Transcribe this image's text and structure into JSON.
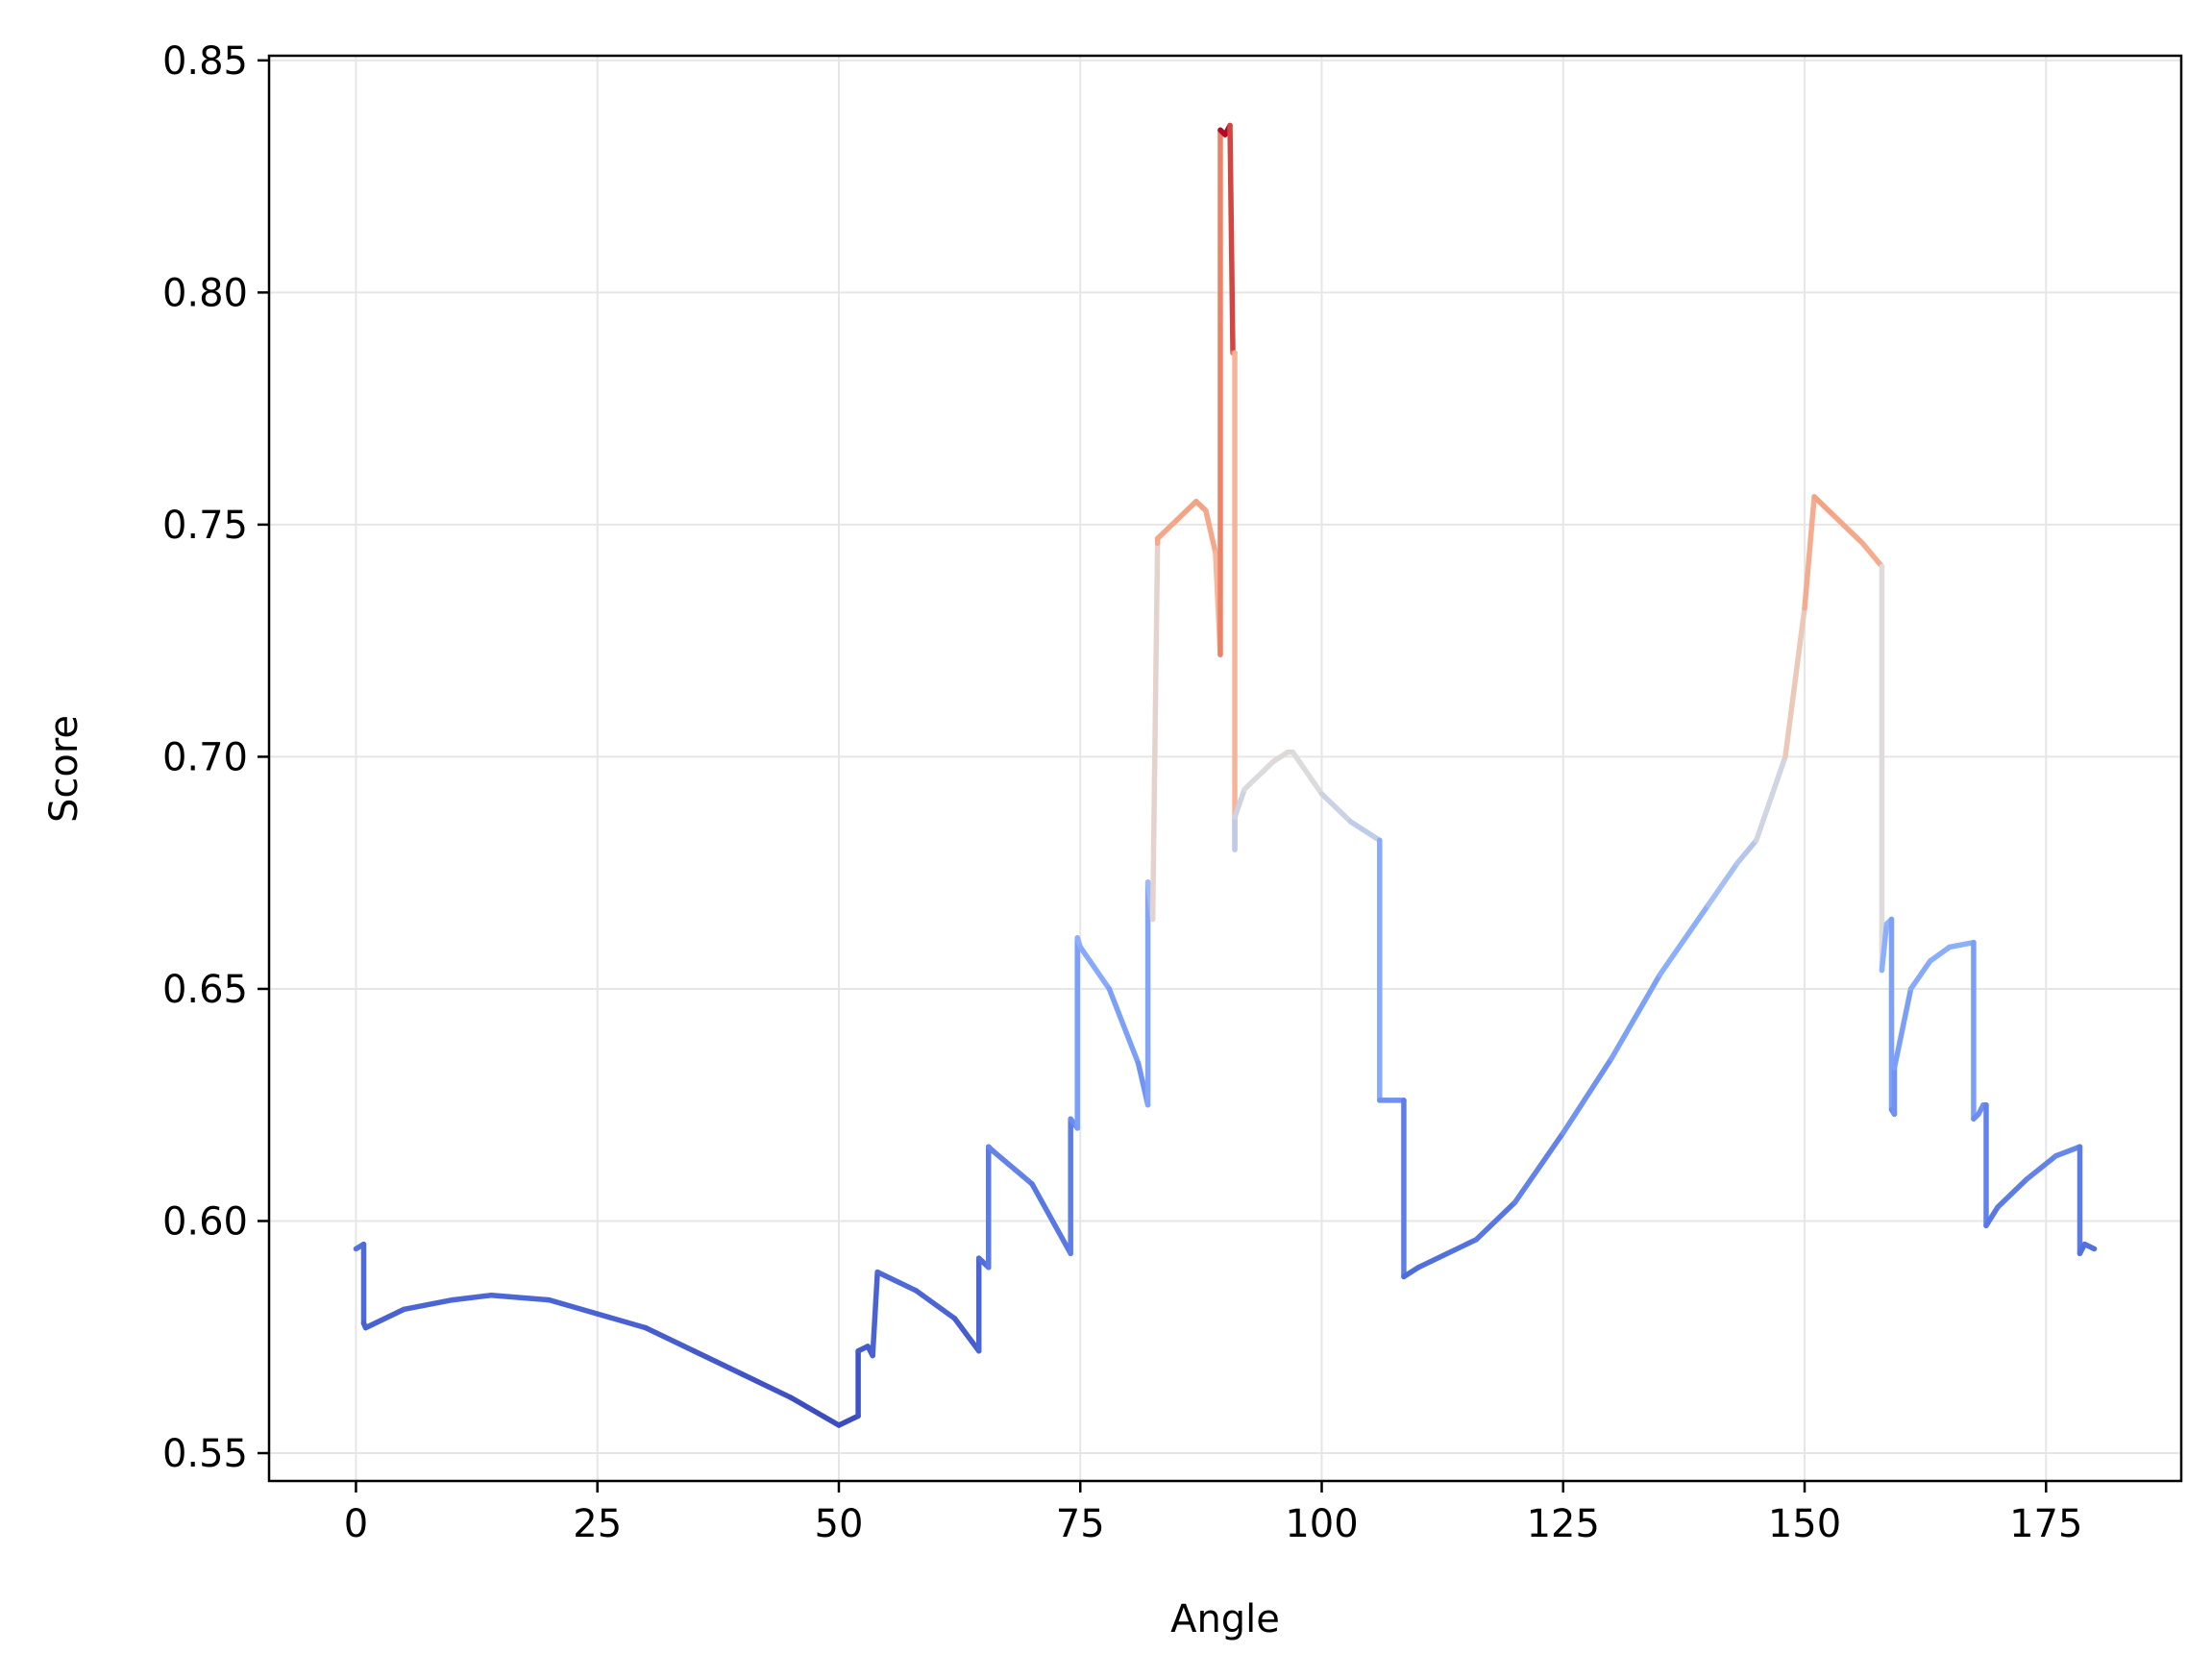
{
  "chart_data": {
    "type": "line",
    "title": "",
    "xlabel": "Angle",
    "ylabel": "Score",
    "xlim": [
      -9,
      189
    ],
    "ylim": [
      0.544,
      0.851
    ],
    "xticks": [
      0,
      25,
      50,
      75,
      100,
      125,
      150,
      175
    ],
    "yticks": [
      0.55,
      0.6,
      0.65,
      0.7,
      0.75,
      0.8,
      0.85
    ],
    "xtick_labels": [
      "0",
      "25",
      "50",
      "75",
      "100",
      "125",
      "150",
      "175"
    ],
    "ytick_labels": [
      "0.55",
      "0.60",
      "0.65",
      "0.70",
      "0.75",
      "0.80",
      "0.85"
    ],
    "grid": true,
    "legend": false,
    "colormap": "coolwarm",
    "color_range": [
      0.558,
      0.836
    ],
    "series": [
      {
        "x": [
          0,
          0.8,
          0.8,
          1,
          5,
          10,
          14,
          20,
          25,
          30,
          35,
          40,
          45,
          50,
          52,
          52,
          53,
          53.5,
          54,
          58,
          62,
          64.5,
          64.5,
          65.5,
          65.5,
          66,
          70,
          74,
          74,
          74.7,
          74.7,
          75,
          78,
          81,
          82,
          82,
          82.5,
          83,
          83,
          85,
          87,
          88,
          89,
          89.5,
          89.5,
          90,
          90.5,
          90.8,
          91,
          91,
          91,
          92,
          95,
          96.5,
          97,
          100,
          103,
          106,
          106,
          106.5,
          108,
          108.5,
          108.5,
          110,
          113,
          116,
          120,
          125,
          130,
          135,
          140,
          143,
          145,
          148,
          150,
          151,
          153,
          156,
          158,
          158,
          158.5,
          159,
          159,
          159.3,
          159.3,
          161,
          163,
          165,
          167.5,
          167.5,
          168,
          168.5,
          168.8,
          168.8,
          170,
          173,
          176,
          178.5,
          178.5,
          179,
          180
        ],
        "y": [
          0.594,
          0.595,
          0.578,
          0.577,
          0.581,
          0.583,
          0.584,
          0.583,
          0.58,
          0.577,
          0.572,
          0.567,
          0.562,
          0.556,
          0.558,
          0.572,
          0.573,
          0.571,
          0.589,
          0.585,
          0.579,
          0.572,
          0.592,
          0.59,
          0.616,
          0.615,
          0.608,
          0.593,
          0.622,
          0.62,
          0.661,
          0.659,
          0.65,
          0.634,
          0.625,
          0.673,
          0.665,
          0.746,
          0.747,
          0.751,
          0.755,
          0.753,
          0.744,
          0.722,
          0.835,
          0.834,
          0.836,
          0.787,
          0.787,
          0.68,
          0.687,
          0.693,
          0.699,
          0.701,
          0.701,
          0.692,
          0.686,
          0.682,
          0.626,
          0.626,
          0.626,
          0.626,
          0.588,
          0.59,
          0.593,
          0.596,
          0.604,
          0.619,
          0.635,
          0.653,
          0.668,
          0.677,
          0.682,
          0.7,
          0.732,
          0.756,
          0.752,
          0.746,
          0.741,
          0.654,
          0.664,
          0.665,
          0.624,
          0.623,
          0.633,
          0.65,
          0.656,
          0.659,
          0.66,
          0.622,
          0.623,
          0.625,
          0.625,
          0.599,
          0.603,
          0.609,
          0.614,
          0.616,
          0.593,
          0.595,
          0.594
        ]
      }
    ]
  }
}
